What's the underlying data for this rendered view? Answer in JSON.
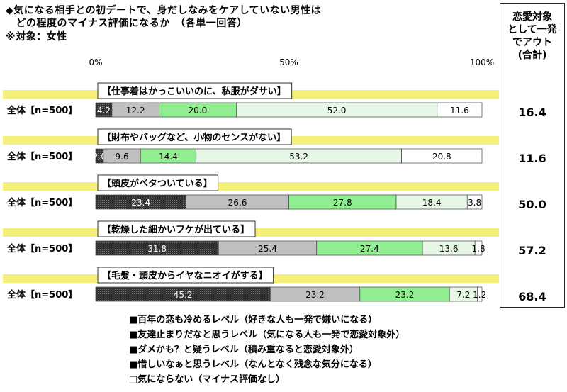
{
  "title_lines": [
    "◆気になる相手との初デートで、身だしなみをケアしていない男性は",
    "　どの程度のマイナス評価になるか　（各単一回答）",
    "※対象：女性"
  ],
  "right_header": [
    "恋愛対象",
    "として一発",
    "でアウト",
    "(合計)"
  ],
  "axis_ticks": [
    "0%",
    "50%",
    "100%"
  ],
  "colors": [
    "#333333",
    "#c0c0c0",
    "#90ee90",
    "#e6f7e6",
    "#ffffff"
  ],
  "chart_data": {
    "type": "bar",
    "orientation": "horizontal",
    "stacked": true,
    "xlim": [
      0,
      100
    ],
    "tick_labels": [
      "0%",
      "50%",
      "100%"
    ],
    "series_names": [
      "■百年の恋も冷めるレベル（好きな人も一発で嫌いになる）",
      "■友達止まりだなと思うレベル（気になる人も一発で恋愛対象外）",
      "■ダメかも？と疑うレベル（積み重なると恋愛対象外）",
      "■惜しいなぁと思うレベル（なんとなく残念な気分になる）",
      "□気にならない（マイナス評価なし）"
    ],
    "items": [
      {
        "heading": "【仕事着はかっこいいのに、私服がダサい】",
        "label": "全体【n=500】",
        "values": [
          4.2,
          12.2,
          20.0,
          52.0,
          11.6
        ],
        "value_labels": [
          "4.2",
          "12.2",
          "20.0",
          "52.0",
          "11.6"
        ],
        "total": "16.4"
      },
      {
        "heading": "【財布やバッグなど、小物のセンスがない】",
        "label": "全体【n=500】",
        "values": [
          2.0,
          9.6,
          14.4,
          53.2,
          20.8
        ],
        "value_labels": [
          "2.0",
          "9.6",
          "14.4",
          "53.2",
          "20.8"
        ],
        "total": "11.6"
      },
      {
        "heading": "【頭皮がベタついている】",
        "label": "全体【n=500】",
        "values": [
          23.4,
          26.6,
          27.8,
          18.4,
          3.8
        ],
        "value_labels": [
          "23.4",
          "26.6",
          "27.8",
          "18.4",
          "3.8"
        ],
        "total": "50.0"
      },
      {
        "heading": "【乾燥した細かいフケが出ている】",
        "label": "全体【n=500】",
        "values": [
          31.8,
          25.4,
          27.4,
          13.6,
          1.8
        ],
        "value_labels": [
          "31.8",
          "25.4",
          "27.4",
          "13.6",
          "1.8"
        ],
        "total": "57.2"
      },
      {
        "heading": "【毛髪・頭皮からイヤなニオイがする】",
        "label": "全体【n=500】",
        "values": [
          45.2,
          23.2,
          23.2,
          7.2,
          1.2
        ],
        "value_labels": [
          "45.2",
          "23.2",
          "23.2",
          "7.2",
          "1.2"
        ],
        "total": "68.4"
      }
    ]
  }
}
